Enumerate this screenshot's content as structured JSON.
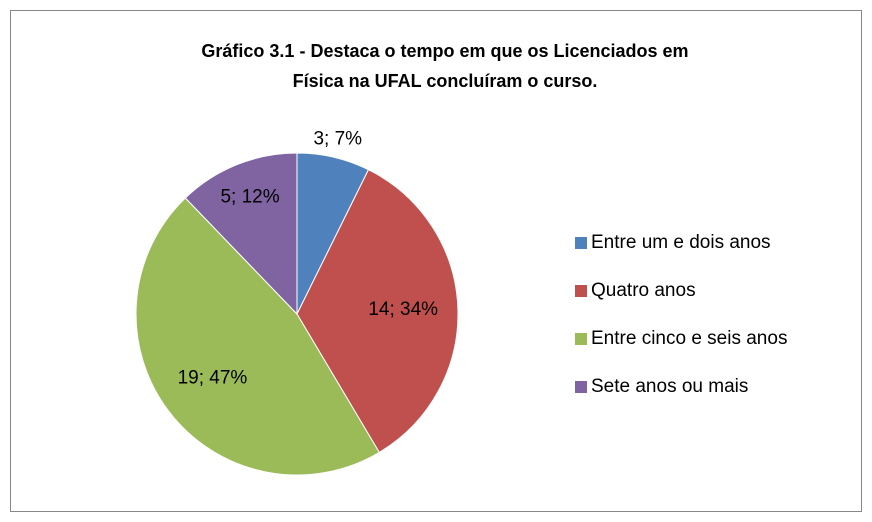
{
  "chart_data": {
    "type": "pie",
    "title": "Gráfico 3.1 - Destaca o tempo em que os Licenciados em Física na UFAL concluíram o curso.",
    "categories": [
      "Entre um e dois anos",
      "Quatro anos",
      "Entre cinco e seis anos",
      "Sete anos ou mais"
    ],
    "values": [
      3,
      14,
      19,
      5
    ],
    "value_labels": [
      "3; 7%",
      "14; 34%",
      "19; 47%",
      "5; 12%"
    ],
    "colors": [
      "#4f81bd",
      "#c0504d",
      "#9bbb59",
      "#8064a2"
    ],
    "legend": "right"
  }
}
